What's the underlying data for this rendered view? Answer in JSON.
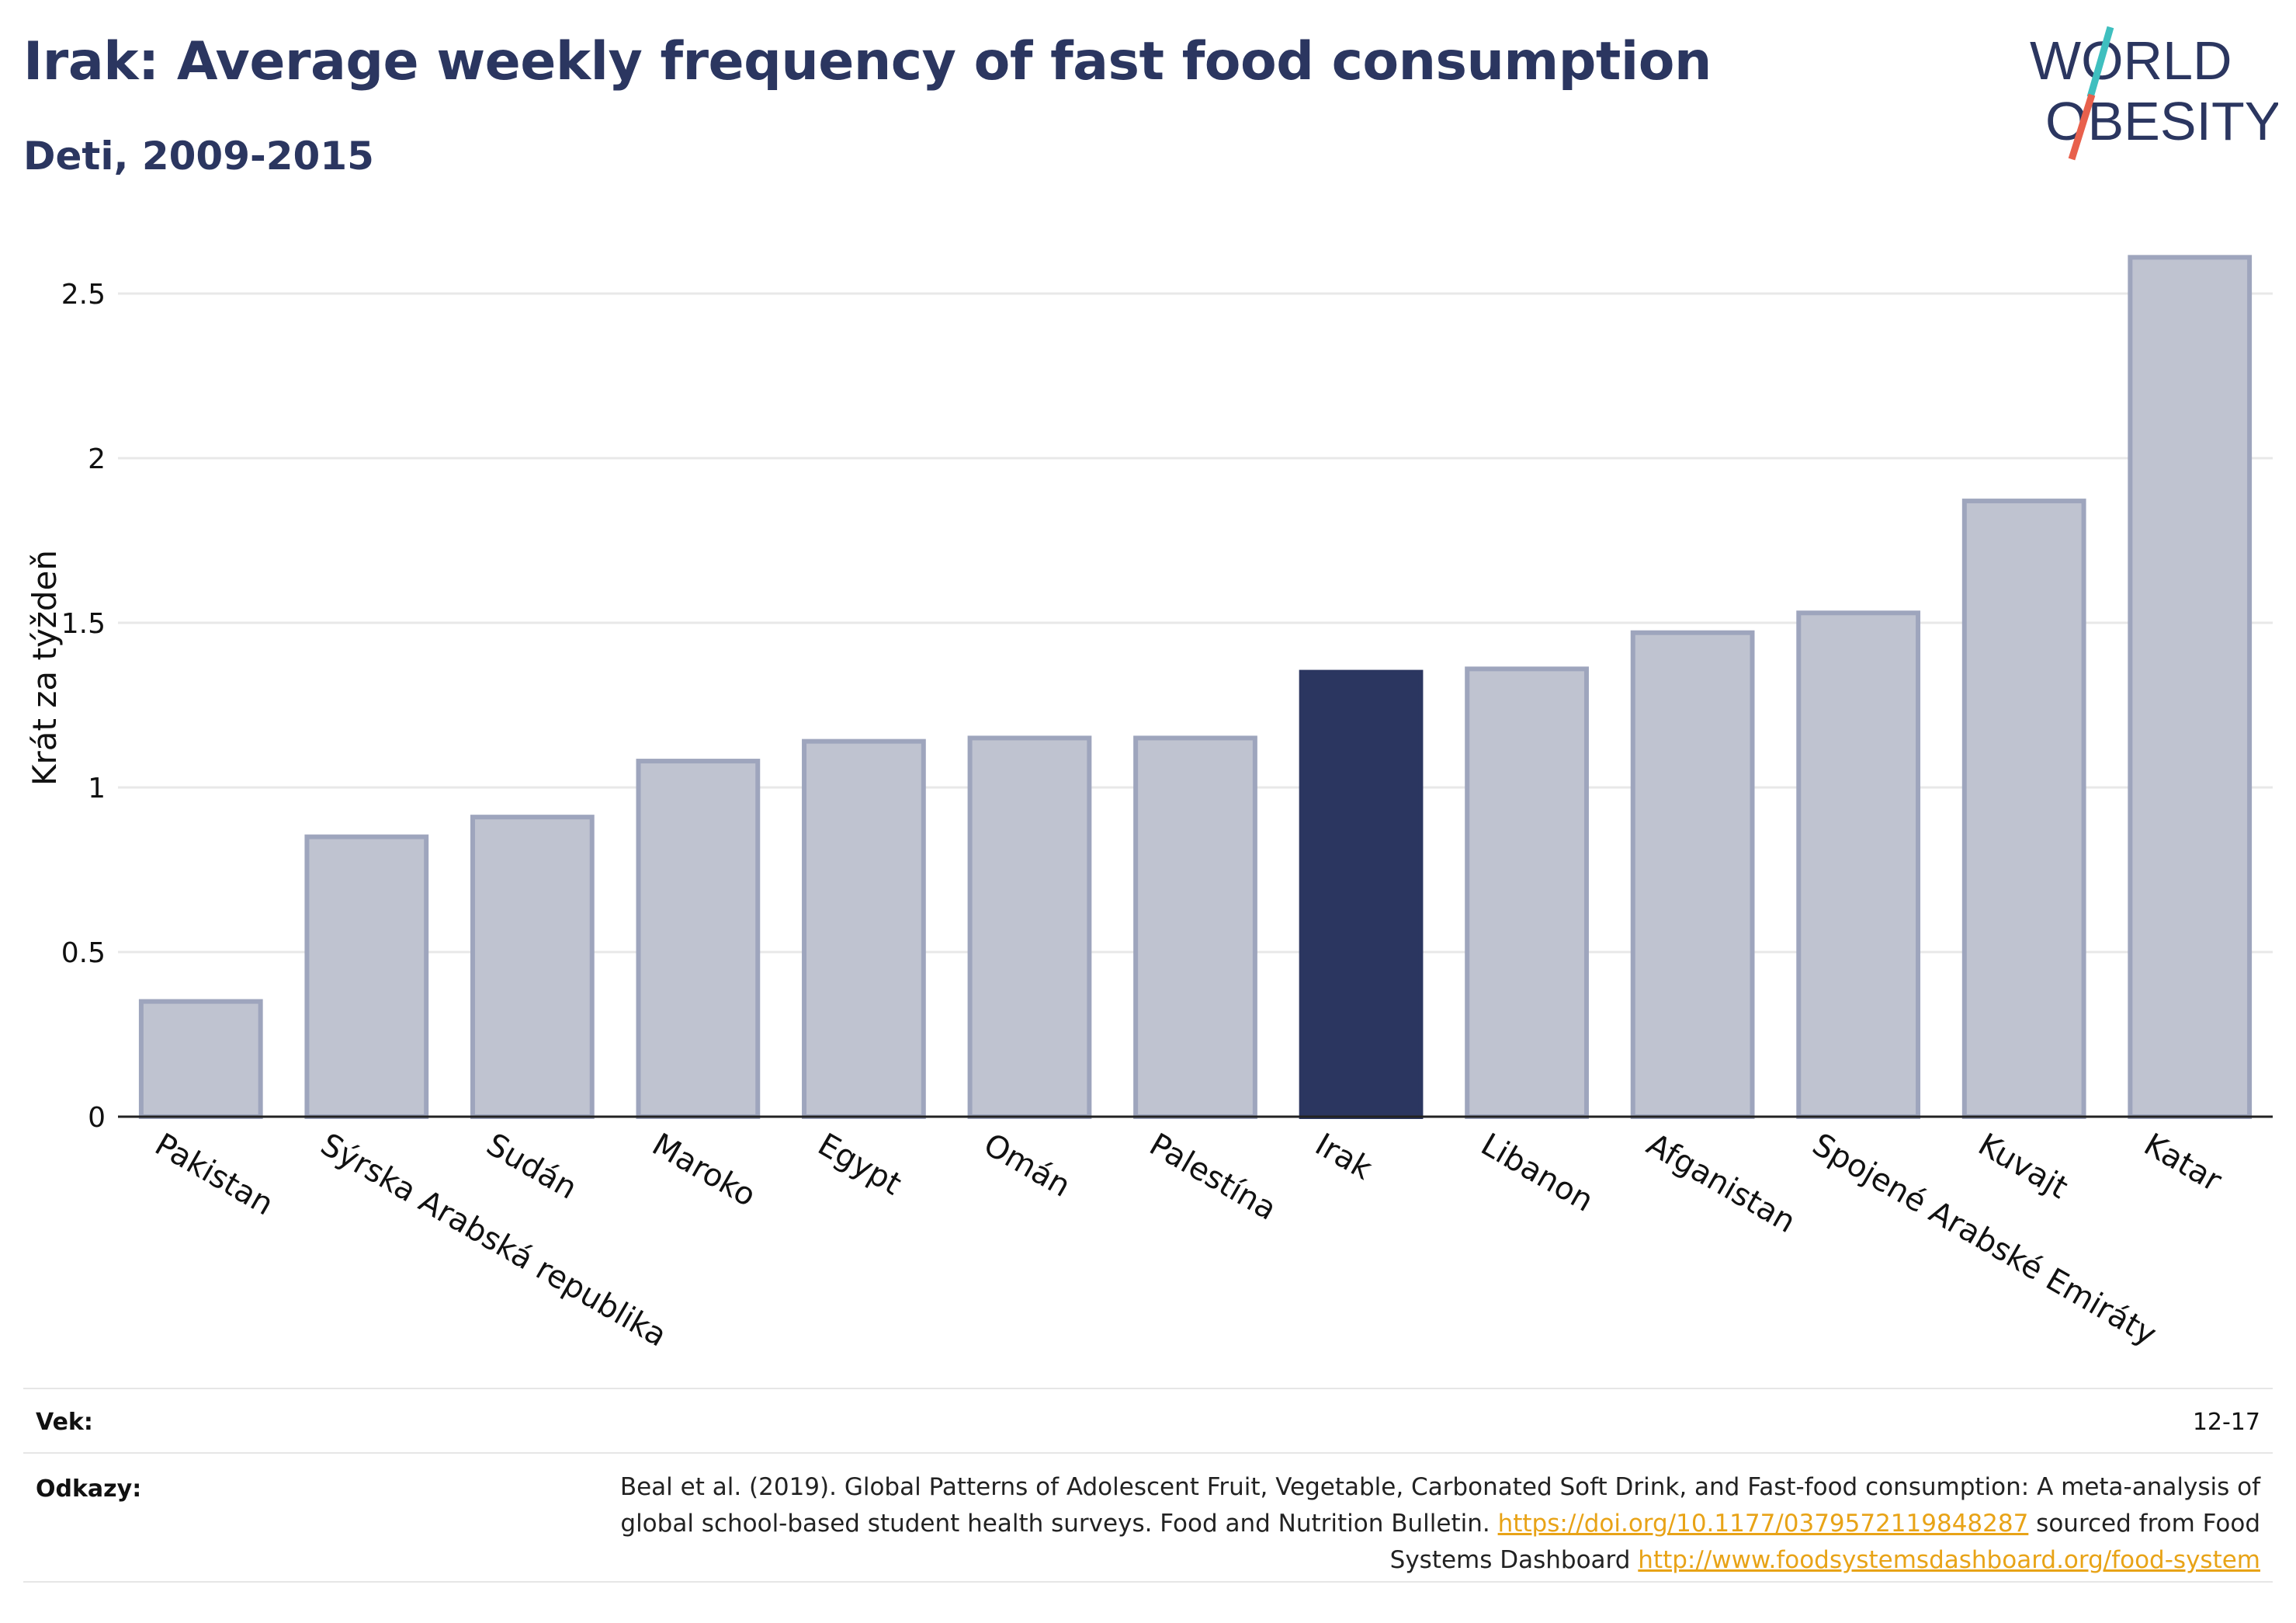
{
  "header": {
    "title": "Irak: Average weekly frequency of fast food consumption",
    "subtitle": "Deti, 2009-2015"
  },
  "logo": {
    "line1": "WORLD",
    "line2": "OBESITY",
    "text_color": "#2b3660",
    "slash_color_top": "#3fbfbf",
    "slash_color_bottom": "#e8604c"
  },
  "chart_data": {
    "type": "bar",
    "title": "Irak: Average weekly frequency of fast food consumption",
    "subtitle": "Deti, 2009-2015",
    "xlabel": "",
    "ylabel": "Krát za týždeň",
    "ylim": [
      0,
      2.65
    ],
    "yticks": [
      0,
      0.5,
      1,
      1.5,
      2,
      2.5
    ],
    "ytick_labels": [
      "0",
      "0.5",
      "1",
      "1.5",
      "2",
      "2.5"
    ],
    "grid": true,
    "categories": [
      "Pakistan",
      "Sýrska Arabská republika",
      "Sudán",
      "Maroko",
      "Egypt",
      "Omán",
      "Palestína",
      "Irak",
      "Libanon",
      "Afganistan",
      "Spojené Arabské Emiráty",
      "Kuvajt",
      "Katar"
    ],
    "values": [
      0.35,
      0.85,
      0.91,
      1.08,
      1.14,
      1.15,
      1.15,
      1.35,
      1.36,
      1.47,
      1.53,
      1.87,
      2.61
    ],
    "highlight": "Irak",
    "colors": {
      "bar": "#bfc3d0",
      "bar_border": "#9ea5bd",
      "highlight": "#2b3660",
      "grid": "#e8e8e8"
    }
  },
  "footer": {
    "age_label": "Vek:",
    "age_value": "12-17",
    "refs_label": "Odkazy:",
    "refs_text1": "Beal et al. (2019). Global Patterns of Adolescent Fruit, Vegetable, Carbonated Soft Drink, and Fast-food consumption: A meta-analysis of global school-based student health surveys. Food and Nutrition Bulletin. ",
    "refs_link1": "https://doi.org/10.1177/0379572119848287",
    "refs_text2": " sourced from Food Systems Dashboard ",
    "refs_link2": "http://www.foodsystemsdashboard.org/food-system"
  }
}
